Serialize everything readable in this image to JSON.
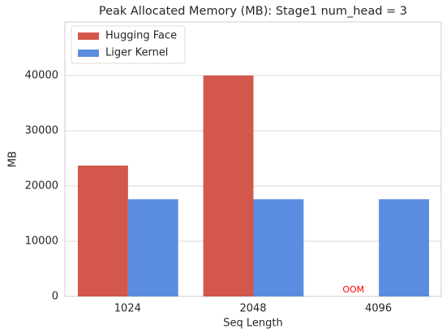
{
  "chart_data": {
    "type": "bar",
    "title": "Peak Allocated Memory (MB): Stage1 num_head = 3",
    "x_label": "Seq Length",
    "y_label": "MB",
    "categories": [
      "1024",
      "2048",
      "4096"
    ],
    "series": [
      {
        "name": "Hugging Face",
        "color": "#d4574b",
        "values": [
          23700,
          40000,
          null
        ]
      },
      {
        "name": "Liger Kernel",
        "color": "#5a8ce0",
        "values": [
          17600,
          17600,
          17600
        ]
      }
    ],
    "annotations": [
      {
        "text": "OOM",
        "color": "#ff0000"
      }
    ],
    "ylim": [
      0,
      49700
    ],
    "yticks": [
      0,
      10000,
      20000,
      30000,
      40000
    ],
    "grid": true,
    "legend": "upper left"
  }
}
